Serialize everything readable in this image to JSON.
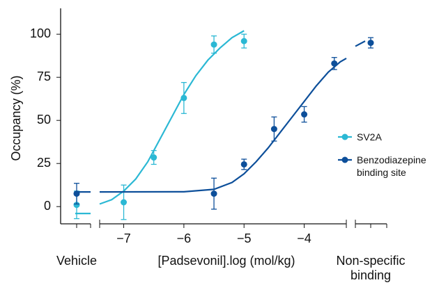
{
  "chart_data": {
    "type": "dose-response",
    "ylabel": "Occupancy (%)",
    "xlabel": "[Padsevonil].log (mol/kg)",
    "vehicle_label": "Vehicle",
    "nonspecific_label": "Non-specific binding",
    "xlim": [
      -7.4,
      -3.3
    ],
    "xticks": [
      {
        "value": -7,
        "label": "−7"
      },
      {
        "value": -6,
        "label": "−6"
      },
      {
        "value": -5,
        "label": "−5"
      },
      {
        "value": -4,
        "label": "−4"
      }
    ],
    "ylim": [
      -10,
      115
    ],
    "yticks": [
      0,
      25,
      50,
      75,
      100
    ],
    "series": [
      {
        "name": "SV2A",
        "color": "#2bb8d4",
        "x": [
          -7,
          -6.5,
          -6,
          -5.5,
          -5
        ],
        "values": [
          2.5,
          28.5,
          63,
          94,
          96
        ],
        "errors": [
          10,
          4,
          9,
          5,
          4
        ],
        "vehicle": {
          "value": 1,
          "error": 8
        },
        "fit_x": [
          -7.4,
          -7.2,
          -7,
          -6.8,
          -6.6,
          -6.4,
          -6.2,
          -6,
          -5.8,
          -5.6,
          -5.4,
          -5.2,
          -5
        ],
        "fit_y": [
          1.5,
          4,
          9,
          16,
          26,
          39,
          52,
          65,
          76,
          85,
          92,
          98,
          102
        ],
        "vehicle_fit": -4
      },
      {
        "name": "Benzodiazepine binding site",
        "color": "#0d4f9a",
        "x": [
          -5.5,
          -5,
          -4.5,
          -4,
          -3.5
        ],
        "values": [
          7.5,
          24.5,
          45,
          53.5,
          83
        ],
        "errors": [
          9,
          3,
          7,
          4.5,
          3.5
        ],
        "vehicle": {
          "value": 7.5,
          "error": 6
        },
        "nonspecific": {
          "value": 95,
          "error": 3
        },
        "fit_x": [
          -7.4,
          -6,
          -5.5,
          -5.2,
          -5,
          -4.8,
          -4.6,
          -4.4,
          -4.2,
          -4,
          -3.8,
          -3.6,
          -3.4,
          -3.3
        ],
        "fit_y": [
          8.5,
          8.6,
          10,
          14,
          19,
          26,
          34,
          43,
          52,
          61,
          70,
          78,
          84,
          86
        ],
        "vehicle_fit": 8.5,
        "nonspecific_fit": [
          93,
          96
        ]
      }
    ]
  }
}
